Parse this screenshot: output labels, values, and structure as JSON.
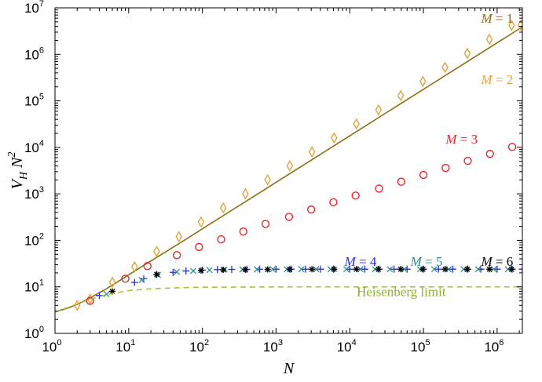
{
  "chart_data": {
    "type": "scatter",
    "title": "",
    "xlabel": "N",
    "ylabel": "V_H N^2",
    "xscale": "log",
    "yscale": "log",
    "xlim": [
      1,
      2200000
    ],
    "ylim": [
      1,
      10000000
    ],
    "x_tick_labels": [
      {
        "value": 1,
        "base": "10",
        "exp": "0"
      },
      {
        "value": 10,
        "base": "10",
        "exp": "1"
      },
      {
        "value": 100,
        "base": "10",
        "exp": "2"
      },
      {
        "value": 1000,
        "base": "10",
        "exp": "3"
      },
      {
        "value": 10000,
        "base": "10",
        "exp": "4"
      },
      {
        "value": 100000,
        "base": "10",
        "exp": "5"
      },
      {
        "value": 1000000,
        "base": "10",
        "exp": "6"
      }
    ],
    "y_tick_labels": [
      {
        "value": 1,
        "base": "10",
        "exp": "0"
      },
      {
        "value": 10,
        "base": "10",
        "exp": "1"
      },
      {
        "value": 100,
        "base": "10",
        "exp": "2"
      },
      {
        "value": 1000,
        "base": "10",
        "exp": "3"
      },
      {
        "value": 10000,
        "base": "10",
        "exp": "4"
      },
      {
        "value": 100000,
        "base": "10",
        "exp": "5"
      },
      {
        "value": 1000000,
        "base": "10",
        "exp": "6"
      },
      {
        "value": 10000000,
        "base": "10",
        "exp": "7"
      }
    ],
    "grid": false,
    "series": [
      {
        "name": "M = 1",
        "kind": "line",
        "color": "#8b6f12",
        "x": [
          1,
          1.5,
          2,
          3,
          5,
          8,
          12,
          20,
          35,
          60,
          100,
          200,
          500,
          1000,
          3000,
          10000,
          30000,
          100000,
          300000,
          1000000,
          2200000
        ],
        "y": [
          2.9,
          3.5,
          4.2,
          5.8,
          9.1,
          14.5,
          21.8,
          36,
          62,
          106,
          177,
          354,
          885,
          1770,
          5310,
          17700,
          53100,
          177000,
          531000,
          1770000,
          3900000
        ]
      },
      {
        "name": "M = 2",
        "kind": "markers",
        "marker": "diamond",
        "color": "#e6a23c",
        "x": [
          2,
          3,
          6,
          12,
          24,
          48,
          96,
          192,
          384,
          768,
          1536,
          3072,
          6144,
          12288,
          24576,
          49152,
          98304,
          196608,
          393216,
          786432,
          1572864,
          2097152
        ],
        "y": [
          4.0,
          5.5,
          12.5,
          27,
          58,
          120,
          248,
          500,
          1000,
          2000,
          4000,
          8000,
          16000,
          32000,
          64000,
          130000,
          262000,
          525000,
          1050000,
          2100000,
          4200000,
          4200000
        ]
      },
      {
        "name": "M = 3",
        "kind": "markers",
        "marker": "circle",
        "color": "#e8262b",
        "x": [
          3,
          9,
          18,
          45,
          90,
          180,
          360,
          720,
          1500,
          3000,
          6000,
          12000,
          25000,
          50000,
          100000,
          200000,
          400000,
          800000,
          1600000
        ],
        "y": [
          5,
          15,
          28,
          48,
          72,
          105,
          155,
          225,
          320,
          460,
          660,
          920,
          1300,
          1820,
          2560,
          3620,
          5120,
          7250,
          10200
        ]
      },
      {
        "name": "M = 4",
        "kind": "markers",
        "marker": "plus",
        "color": "#2a2adf",
        "x": [
          4,
          12,
          16,
          24,
          40,
          60,
          100,
          160,
          250,
          400,
          600,
          1000,
          1600,
          2500,
          4000,
          6000,
          10000,
          16000,
          25000,
          40000,
          60000,
          100000,
          160000,
          250000,
          400000,
          600000,
          1000000,
          1600000,
          2200000
        ],
        "y": [
          6.5,
          12.5,
          15,
          18.5,
          20.5,
          22,
          23,
          23.5,
          23.7,
          23.8,
          23.9,
          24,
          24,
          24,
          24,
          24,
          24,
          24,
          24,
          24,
          24,
          24,
          24,
          24,
          24,
          24,
          24,
          24,
          24
        ]
      },
      {
        "name": "M = 5",
        "kind": "markers",
        "marker": "cross",
        "color": "#2f8f8f",
        "x": [
          5,
          15,
          25,
          45,
          75,
          125,
          200,
          350,
          550,
          900,
          1400,
          2200,
          3500,
          5500,
          9000,
          14000,
          22000,
          35000,
          55000,
          90000,
          140000,
          220000,
          350000,
          550000,
          900000,
          1400000
        ],
        "y": [
          7,
          14,
          18,
          21,
          22,
          23,
          23.5,
          23.7,
          23.8,
          23.9,
          24,
          24,
          24,
          24,
          24,
          24,
          24,
          24,
          24,
          24,
          24,
          24,
          24,
          24,
          24,
          24
        ]
      },
      {
        "name": "M = 6",
        "kind": "markers",
        "marker": "asterisk",
        "color": "#000000",
        "x": [
          6,
          24,
          96,
          192,
          384,
          768,
          1536,
          3072,
          6144,
          12288,
          24576,
          49152,
          98304,
          196608,
          393216,
          786432,
          1572864
        ],
        "y": [
          8,
          18.5,
          22.5,
          23.2,
          23.5,
          23.7,
          23.8,
          23.9,
          24,
          24,
          24,
          24,
          24,
          24,
          24,
          24,
          24
        ]
      },
      {
        "name": "Heisenberg limit",
        "kind": "dashed-line",
        "color": "#a6c23a",
        "x": [
          1,
          1.5,
          2,
          3,
          5,
          10,
          20,
          50,
          100,
          1000,
          10000,
          100000,
          1000000,
          2200000
        ],
        "y": [
          2.9,
          3.6,
          4.3,
          5.4,
          6.8,
          8.3,
          9.1,
          9.6,
          9.8,
          9.98,
          10,
          10,
          10,
          10
        ]
      }
    ],
    "annotations": [
      {
        "text": "M = 1",
        "color": "#8b6f12",
        "x": 1000000,
        "y": 4800000
      },
      {
        "text": "M = 2",
        "color": "#e6a23c",
        "x": 1000000,
        "y": 230000
      },
      {
        "text": "M = 3",
        "color": "#e8262b",
        "x": 330000,
        "y": 12000
      },
      {
        "text": "M = 4",
        "color": "#2a2adf",
        "x": 14000,
        "y": 28
      },
      {
        "text": "M = 5",
        "color": "#2f8f8f",
        "x": 110000,
        "y": 28
      },
      {
        "text": "M = 6",
        "color": "#000000",
        "x": 1000000,
        "y": 28
      },
      {
        "text": "Heisenberg limit",
        "color": "#8bb02a",
        "x": 50000,
        "y": 6.3
      }
    ]
  }
}
